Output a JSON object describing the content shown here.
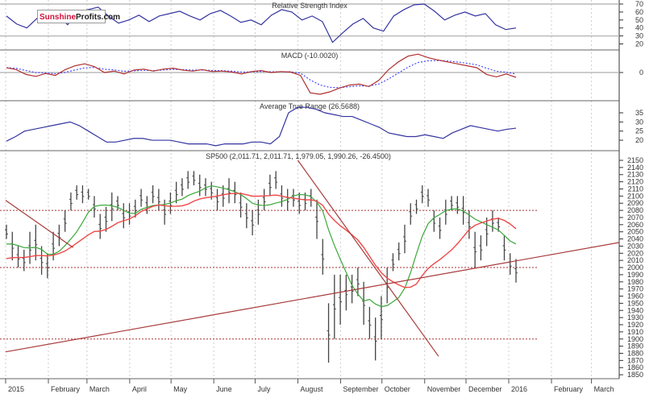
{
  "logo": {
    "part1": "Sunshine",
    "part2": "Profits.com"
  },
  "chart_data": [
    {
      "type": "line",
      "title": "Relative Strength Index",
      "ylim": [
        10,
        75
      ],
      "yticks": [
        70,
        60,
        50,
        40,
        30,
        20
      ],
      "reference_lines": [
        70,
        30
      ],
      "color": "#3434a0",
      "values": [
        55,
        45,
        40,
        52,
        48,
        57,
        44,
        60,
        63,
        66,
        55,
        46,
        50,
        56,
        48,
        55,
        58,
        61,
        55,
        50,
        58,
        62,
        55,
        47,
        50,
        44,
        56,
        63,
        60,
        50,
        55,
        48,
        22,
        34,
        45,
        52,
        40,
        36,
        55,
        63,
        69,
        70,
        61,
        50,
        56,
        60,
        55,
        58,
        44,
        38,
        40
      ]
    },
    {
      "type": "line",
      "title": "MACD (-10.0020)",
      "yticks": [
        0
      ],
      "ylim": [
        -55,
        45
      ],
      "series": [
        {
          "color": "#b03030",
          "values": [
            10,
            6,
            -4,
            -8,
            -2,
            -6,
            6,
            14,
            18,
            12,
            0,
            3,
            -3,
            5,
            7,
            3,
            7,
            9,
            5,
            3,
            6,
            2,
            3,
            1,
            -3,
            2,
            4,
            0,
            2,
            1,
            -6,
            -42,
            -45,
            -40,
            -32,
            -26,
            -24,
            -29,
            -16,
            6,
            22,
            34,
            38,
            31,
            26,
            22,
            18,
            14,
            10,
            -4,
            -9,
            -3,
            -10
          ]
        },
        {
          "color": "#4a4aff",
          "dashed": true,
          "smoothing": "signal"
        }
      ]
    },
    {
      "type": "line",
      "title": "Average True Range (26.5688)",
      "ylim": [
        15,
        40
      ],
      "yticks": [
        35,
        30,
        25,
        20
      ],
      "color": "#3434a0",
      "values": [
        19.5,
        22,
        25,
        26,
        27,
        28,
        29,
        30,
        28,
        25,
        22,
        19,
        19,
        20,
        21,
        21,
        20,
        20,
        20,
        19,
        18,
        18,
        18,
        17,
        18,
        18,
        18,
        19,
        19,
        18,
        22,
        35,
        38,
        38,
        37,
        35,
        34,
        33,
        33,
        31,
        29,
        27,
        24,
        23,
        22,
        22,
        23,
        22,
        21,
        24,
        26,
        28,
        27,
        26,
        25,
        26,
        26.6
      ]
    },
    {
      "type": "bar",
      "subtype": "ohlc",
      "title": "SP500 (2,011.71, 2,011.71, 1,979.05, 1,990.26, -26.4500)",
      "ylim": [
        1840,
        2160
      ],
      "yticks": [
        2150,
        2140,
        2130,
        2120,
        2110,
        2100,
        2090,
        2080,
        2070,
        2060,
        2050,
        2040,
        2030,
        2020,
        2010,
        2000,
        1990,
        1980,
        1970,
        1960,
        1950,
        1940,
        1930,
        1920,
        1910,
        1900,
        1890,
        1880,
        1870,
        1860,
        1850
      ],
      "x_range": [
        "2015-01-02",
        "2016-01-07"
      ],
      "bars_low_high": [
        [
          2040,
          2060
        ],
        [
          2010,
          2050
        ],
        [
          2000,
          2030
        ],
        [
          1995,
          2025
        ],
        [
          2005,
          2050
        ],
        [
          2010,
          2060
        ],
        [
          1990,
          2030
        ],
        [
          1985,
          2020
        ],
        [
          2010,
          2050
        ],
        [
          2030,
          2060
        ],
        [
          2050,
          2080
        ],
        [
          2080,
          2105
        ],
        [
          2095,
          2115
        ],
        [
          2090,
          2115
        ],
        [
          2095,
          2110
        ],
        [
          2070,
          2100
        ],
        [
          2040,
          2075
        ],
        [
          2050,
          2085
        ],
        [
          2065,
          2105
        ],
        [
          2080,
          2100
        ],
        [
          2055,
          2090
        ],
        [
          2060,
          2090
        ],
        [
          2070,
          2095
        ],
        [
          2085,
          2110
        ],
        [
          2075,
          2100
        ],
        [
          2090,
          2115
        ],
        [
          2080,
          2110
        ],
        [
          2060,
          2095
        ],
        [
          2075,
          2105
        ],
        [
          2090,
          2120
        ],
        [
          2100,
          2125
        ],
        [
          2110,
          2135
        ],
        [
          2115,
          2135
        ],
        [
          2100,
          2130
        ],
        [
          2100,
          2125
        ],
        [
          2095,
          2120
        ],
        [
          2080,
          2110
        ],
        [
          2085,
          2115
        ],
        [
          2090,
          2125
        ],
        [
          2090,
          2120
        ],
        [
          2070,
          2105
        ],
        [
          2055,
          2090
        ],
        [
          2045,
          2080
        ],
        [
          2060,
          2095
        ],
        [
          2080,
          2110
        ],
        [
          2100,
          2130
        ],
        [
          2110,
          2135
        ],
        [
          2085,
          2115
        ],
        [
          2080,
          2110
        ],
        [
          2085,
          2110
        ],
        [
          2075,
          2105
        ],
        [
          2080,
          2105
        ],
        [
          2085,
          2110
        ],
        [
          2040,
          2095
        ],
        [
          1990,
          2040
        ],
        [
          1867,
          1950
        ],
        [
          1900,
          1990
        ],
        [
          1920,
          1990
        ],
        [
          1940,
          1990
        ],
        [
          1950,
          1990
        ],
        [
          1960,
          2000
        ],
        [
          1920,
          1980
        ],
        [
          1900,
          1945
        ],
        [
          1870,
          1930
        ],
        [
          1900,
          1960
        ],
        [
          1950,
          2000
        ],
        [
          1995,
          2020
        ],
        [
          2010,
          2035
        ],
        [
          2020,
          2060
        ],
        [
          2060,
          2090
        ],
        [
          2075,
          2095
        ],
        [
          2090,
          2115
        ],
        [
          2085,
          2110
        ],
        [
          2050,
          2080
        ],
        [
          2040,
          2070
        ],
        [
          2060,
          2095
        ],
        [
          2080,
          2100
        ],
        [
          2075,
          2100
        ],
        [
          2060,
          2100
        ],
        [
          2040,
          2080
        ],
        [
          2000,
          2050
        ],
        [
          2010,
          2045
        ],
        [
          2030,
          2070
        ],
        [
          2050,
          2080
        ],
        [
          2050,
          2070
        ],
        [
          2010,
          2045
        ],
        [
          1990,
          2020
        ],
        [
          1979,
          2012
        ]
      ],
      "moving_averages": [
        {
          "color": "#3aa83a"
        },
        {
          "color": "#f04848"
        }
      ],
      "horizontal_lines": [
        2080,
        2000,
        1900
      ],
      "trend_lines": [
        {
          "from": [
            "2015-01-01",
            1882
          ],
          "to": [
            "2016-03-21",
            2035
          ]
        },
        {
          "from": [
            "2015-01-01",
            2094
          ],
          "to": [
            "2015-02-19",
            2028
          ]
        },
        {
          "from": [
            "2015-08-01",
            2150
          ],
          "to": [
            "2015-11-11",
            1876
          ]
        }
      ],
      "trend_line_color": "#a83a3a"
    }
  ],
  "x_axis": {
    "labels": [
      "2015",
      "February",
      "March",
      "April",
      "May",
      "June",
      "July",
      "August",
      "September",
      "October",
      "November",
      "December",
      "2016",
      "February",
      "March"
    ],
    "dates": [
      "2015-01-01",
      "2015-02-01",
      "2015-03-01",
      "2015-04-01",
      "2015-05-01",
      "2015-06-01",
      "2015-07-01",
      "2015-08-01",
      "2015-09-01",
      "2015-10-01",
      "2015-11-01",
      "2015-12-01",
      "2016-01-01",
      "2016-02-01",
      "2016-03-01"
    ]
  }
}
